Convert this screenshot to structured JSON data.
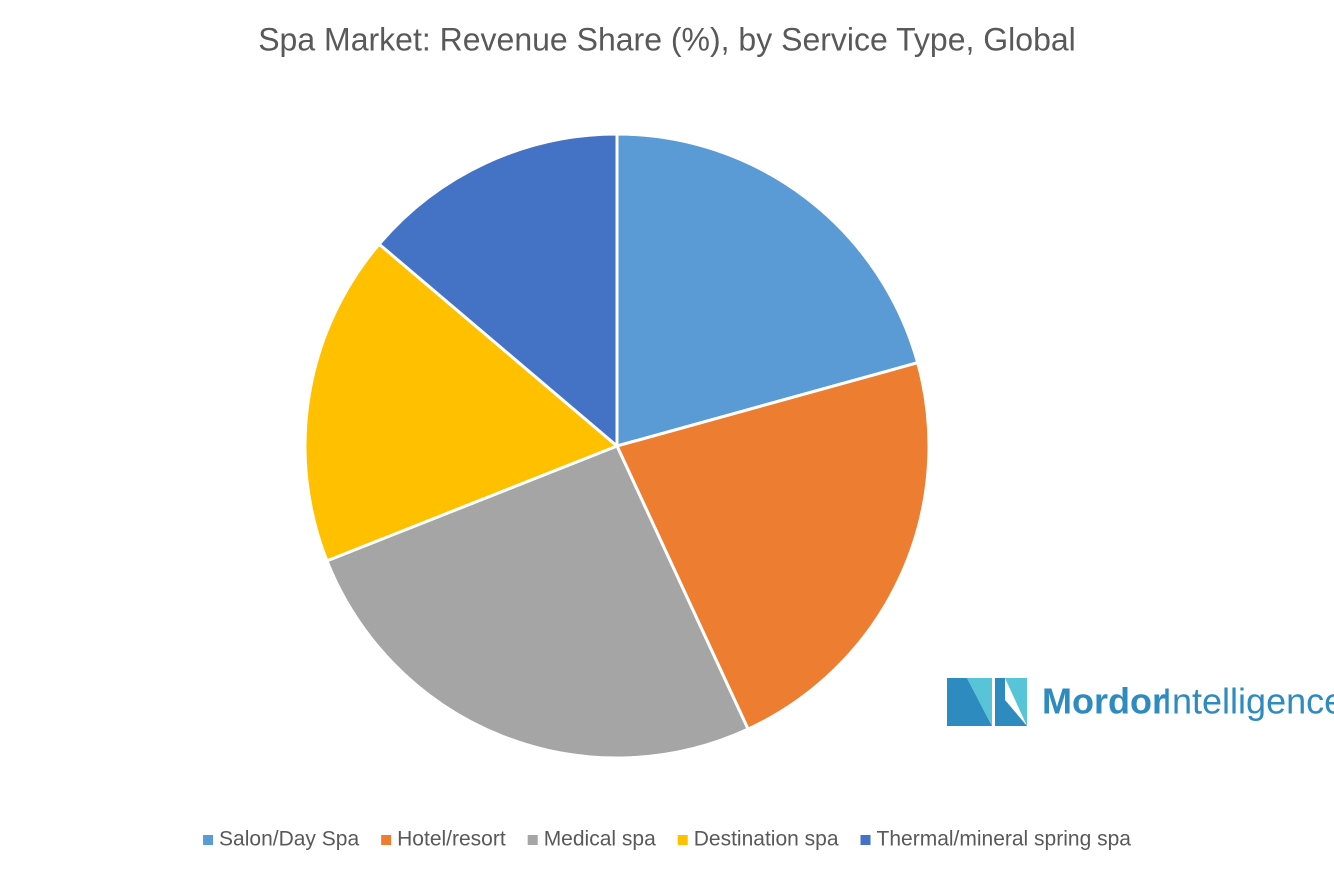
{
  "chart_data": {
    "type": "pie",
    "title": "Spa Market: Revenue Share (%), by Service Type, Global",
    "categories": [
      "Salon/Day Spa",
      "Hotel/resort",
      "Medical spa",
      "Destination spa",
      "Thermal/mineral spring spa"
    ],
    "values": [
      20.7,
      22.4,
      25.9,
      17.2,
      13.8
    ],
    "colors": [
      "#5b9bd5",
      "#ed7d31",
      "#a5a5a5",
      "#ffc000",
      "#4472c4"
    ],
    "legend": "bottom"
  },
  "logo": {
    "brand": "Mordor",
    "suffix": "Intelligence"
  }
}
